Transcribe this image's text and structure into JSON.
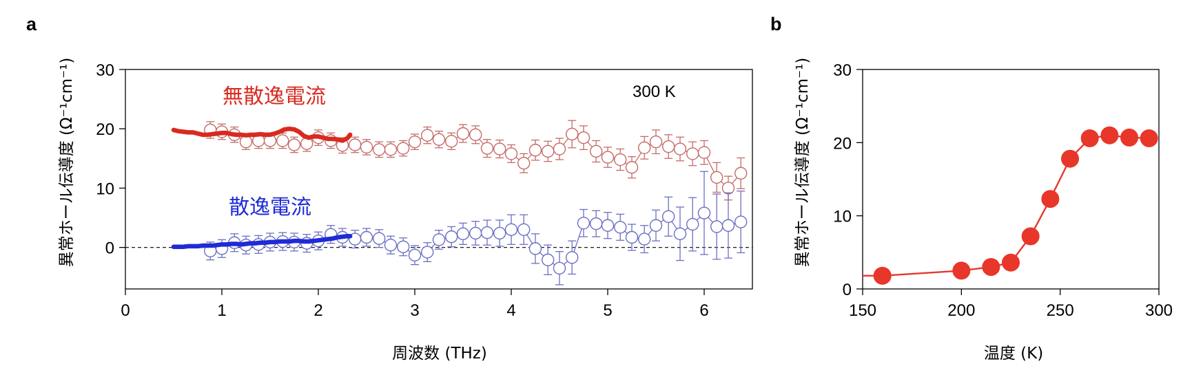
{
  "chart_data": [
    {
      "panel": "a",
      "type": "line",
      "xlabel": "周波数 (THz)",
      "ylabel": "異常ホール伝導度 (Ω⁻¹cm⁻¹)",
      "xlim": [
        0,
        6.5
      ],
      "ylim": [
        -7,
        30
      ],
      "xticks": [
        "0",
        "1",
        "2",
        "3",
        "4",
        "5",
        "6"
      ],
      "yticks": [
        "0",
        "10",
        "20",
        "30"
      ],
      "annotation": "300 K",
      "reference_line": 0,
      "series": [
        {
          "name": "無散逸電流",
          "color": "#d92a20",
          "style": "thick-line",
          "x": [
            0.5,
            0.55,
            0.6,
            0.65,
            0.7,
            0.75,
            0.8,
            0.85,
            0.9,
            0.95,
            1.0,
            1.05,
            1.1,
            1.15,
            1.2,
            1.25,
            1.3,
            1.35,
            1.4,
            1.45,
            1.5,
            1.55,
            1.6,
            1.65,
            1.7,
            1.75,
            1.8,
            1.85,
            1.9,
            1.95,
            2.0,
            2.05,
            2.1,
            2.15,
            2.2,
            2.25,
            2.3,
            2.33
          ],
          "y": [
            19.8,
            19.6,
            19.5,
            19.4,
            19.4,
            19.2,
            19.0,
            19.0,
            19.1,
            19.2,
            19.3,
            19.3,
            19.1,
            19.0,
            19.0,
            18.9,
            19.0,
            19.0,
            19.1,
            19.0,
            19.0,
            19.2,
            19.5,
            19.9,
            20.0,
            19.9,
            19.5,
            18.8,
            18.5,
            18.7,
            18.7,
            18.5,
            18.3,
            18.3,
            18.2,
            18.0,
            18.4,
            19.0
          ]
        },
        {
          "name": "散逸電流",
          "color": "#1f2bd6",
          "style": "thick-line",
          "x": [
            0.5,
            0.55,
            0.6,
            0.65,
            0.7,
            0.75,
            0.8,
            0.85,
            0.9,
            0.95,
            1.0,
            1.05,
            1.1,
            1.15,
            1.2,
            1.25,
            1.3,
            1.35,
            1.4,
            1.45,
            1.5,
            1.55,
            1.6,
            1.65,
            1.7,
            1.75,
            1.8,
            1.85,
            1.9,
            1.95,
            2.0,
            2.05,
            2.1,
            2.15,
            2.2,
            2.25,
            2.3,
            2.33
          ],
          "y": [
            0.1,
            0.1,
            0.1,
            0.2,
            0.2,
            0.2,
            0.3,
            0.3,
            0.3,
            0.4,
            0.5,
            0.5,
            0.6,
            0.6,
            0.5,
            0.6,
            0.7,
            0.7,
            0.8,
            0.8,
            0.9,
            0.9,
            1.0,
            1.0,
            1.0,
            1.1,
            1.1,
            1.0,
            1.0,
            1.1,
            1.2,
            1.3,
            1.4,
            1.5,
            1.7,
            1.8,
            1.9,
            1.9
          ]
        },
        {
          "name": "",
          "color": "#c56a66",
          "style": "open-circles-errorbars",
          "x": [
            0.88,
            1.0,
            1.13,
            1.25,
            1.38,
            1.5,
            1.63,
            1.75,
            1.88,
            2.0,
            2.13,
            2.25,
            2.38,
            2.5,
            2.63,
            2.75,
            2.88,
            3.0,
            3.13,
            3.25,
            3.38,
            3.5,
            3.63,
            3.75,
            3.88,
            4.0,
            4.13,
            4.25,
            4.38,
            4.5,
            4.63,
            4.75,
            4.88,
            5.0,
            5.13,
            5.25,
            5.38,
            5.5,
            5.63,
            5.75,
            5.88,
            6.0,
            6.13,
            6.25,
            6.38
          ],
          "y": [
            19.8,
            19.5,
            19.0,
            17.8,
            18.0,
            18.0,
            18.0,
            17.3,
            17.5,
            18.5,
            18.0,
            17.2,
            17.3,
            16.9,
            16.5,
            16.5,
            16.7,
            17.8,
            18.9,
            18.2,
            17.9,
            19.2,
            19.0,
            16.7,
            16.6,
            15.8,
            14.2,
            16.4,
            16.2,
            16.6,
            19.1,
            18.5,
            16.2,
            15.2,
            14.8,
            13.5,
            16.8,
            17.8,
            17.0,
            16.6,
            15.8,
            16.0,
            11.8,
            10.0,
            12.5
          ],
          "err": [
            1.4,
            1.3,
            1.3,
            1.3,
            1.3,
            1.3,
            1.3,
            1.3,
            1.3,
            1.3,
            1.3,
            1.3,
            1.3,
            1.3,
            1.3,
            1.3,
            1.3,
            1.3,
            1.4,
            1.4,
            1.4,
            1.5,
            1.5,
            1.5,
            1.5,
            1.5,
            1.6,
            1.7,
            1.7,
            1.8,
            2.3,
            2.0,
            1.8,
            1.7,
            1.8,
            1.8,
            1.9,
            2.0,
            2.0,
            2.0,
            2.0,
            2.0,
            2.5,
            2.0,
            2.6
          ]
        },
        {
          "name": "",
          "color": "#6a6fc2",
          "style": "open-circles-errorbars",
          "x": [
            0.88,
            1.0,
            1.13,
            1.25,
            1.38,
            1.5,
            1.63,
            1.75,
            1.88,
            2.0,
            2.13,
            2.25,
            2.38,
            2.5,
            2.63,
            2.75,
            2.88,
            3.0,
            3.13,
            3.25,
            3.38,
            3.5,
            3.63,
            3.75,
            3.88,
            4.0,
            4.13,
            4.25,
            4.38,
            4.5,
            4.63,
            4.75,
            4.88,
            5.0,
            5.13,
            5.25,
            5.38,
            5.5,
            5.63,
            5.75,
            5.88,
            6.0,
            6.13,
            6.25,
            6.38
          ],
          "y": [
            -0.6,
            -0.2,
            0.8,
            0.4,
            0.5,
            0.9,
            1.0,
            0.9,
            0.7,
            1.1,
            2.2,
            1.7,
            1.4,
            1.7,
            1.5,
            0.4,
            0.1,
            -1.3,
            -0.8,
            1.3,
            1.8,
            2.3,
            2.4,
            2.5,
            2.4,
            3.0,
            3.0,
            -0.2,
            -2.1,
            -3.5,
            -1.7,
            4.1,
            4.0,
            3.7,
            3.4,
            1.7,
            1.4,
            3.7,
            5.2,
            2.3,
            3.9,
            5.8,
            3.5,
            3.7,
            4.3
          ],
          "err": [
            1.5,
            1.5,
            1.5,
            1.5,
            1.5,
            1.5,
            1.5,
            1.5,
            1.5,
            1.5,
            1.5,
            1.5,
            1.5,
            1.5,
            1.5,
            1.5,
            1.5,
            1.6,
            1.6,
            1.6,
            1.7,
            1.8,
            2.0,
            2.1,
            2.2,
            2.5,
            2.5,
            2.5,
            2.5,
            2.8,
            2.8,
            2.3,
            2.2,
            2.2,
            2.2,
            2.2,
            2.3,
            2.6,
            3.3,
            4.5,
            4.5,
            7.0,
            5.5,
            5.5,
            5.2
          ]
        }
      ]
    },
    {
      "panel": "b",
      "type": "line",
      "xlabel": "温度 (K)",
      "ylabel": "異常ホール伝導度 (Ω⁻¹cm⁻¹)",
      "xlim": [
        150,
        300
      ],
      "ylim": [
        0,
        30
      ],
      "xticks": [
        "150",
        "200",
        "250",
        "300"
      ],
      "yticks": [
        "0",
        "10",
        "20",
        "30"
      ],
      "series": [
        {
          "name": "",
          "color": "#e8362a",
          "style": "filled-circles-line",
          "x": [
            150,
            160,
            200,
            215,
            225,
            235,
            245,
            255,
            265,
            275,
            285,
            295
          ],
          "y": [
            1.8,
            1.8,
            2.5,
            3.0,
            3.6,
            7.2,
            12.3,
            17.8,
            20.6,
            21.0,
            20.7,
            20.6
          ],
          "marker_from_index": 1
        }
      ]
    }
  ]
}
